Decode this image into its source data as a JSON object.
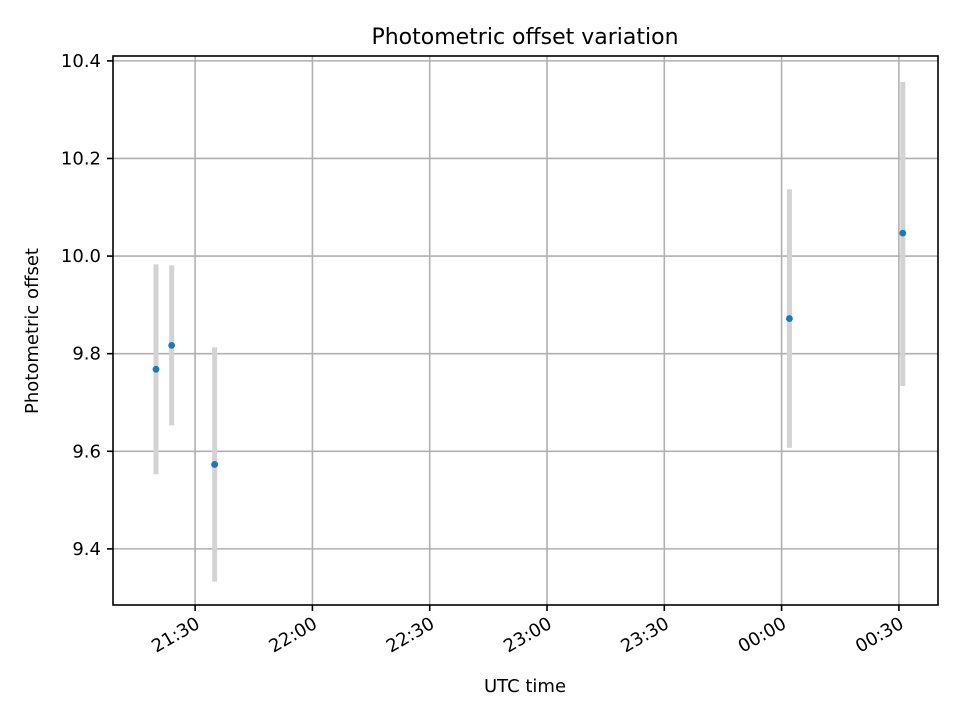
{
  "chart_data": {
    "type": "scatter",
    "title": "Photometric offset variation",
    "xlabel": "UTC time",
    "ylabel": "Photometric offset",
    "grid": true,
    "x_ticks": [
      "21:30",
      "22:00",
      "22:30",
      "23:00",
      "23:30",
      "00:00",
      "00:30"
    ],
    "y_ticks": [
      "9.4",
      "9.6",
      "9.8",
      "10.0",
      "10.2",
      "10.4"
    ],
    "xlim": [
      "21:09",
      "00:40"
    ],
    "ylim": [
      9.285,
      10.41
    ],
    "colors": {
      "points": "#1f77b4",
      "error_bars": "#d3d3d3"
    },
    "series": [
      {
        "points": [
          {
            "x": "21:20",
            "y": 9.768,
            "err_low": 9.553,
            "err_high": 9.983
          },
          {
            "x": "21:24",
            "y": 9.817,
            "err_low": 9.653,
            "err_high": 9.981
          },
          {
            "x": "21:35",
            "y": 9.573,
            "err_low": 9.333,
            "err_high": 9.813
          },
          {
            "x": "00:02",
            "y": 9.872,
            "err_low": 9.607,
            "err_high": 10.137
          },
          {
            "x": "00:31",
            "y": 10.047,
            "err_low": 9.734,
            "err_high": 10.357
          }
        ]
      }
    ]
  }
}
